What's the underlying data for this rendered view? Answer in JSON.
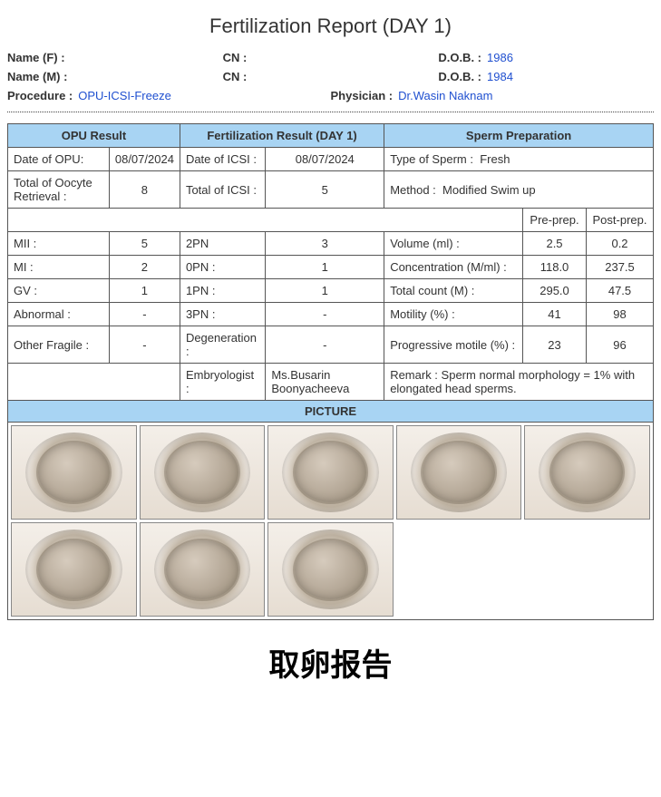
{
  "title": "Fertilization Report (DAY 1)",
  "header": {
    "nameF_label": "Name (F) :",
    "nameF": "",
    "cnF_label": "CN :",
    "cnF": "",
    "dobF_label": "D.O.B. :",
    "dobF": "1986",
    "nameM_label": "Name (M) :",
    "nameM": "",
    "cnM_label": "CN :",
    "cnM": "",
    "dobM_label": "D.O.B. :",
    "dobM": "1984",
    "procedure_label": "Procedure :",
    "procedure": "OPU-ICSI-Freeze",
    "physician_label": "Physician :",
    "physician": "Dr.Wasin Naknam"
  },
  "sections": {
    "opu": "OPU Result",
    "fert": "Fertilization Result (DAY 1)",
    "sperm": "Sperm Preparation",
    "picture": "PICTURE"
  },
  "opu": {
    "date_label": "Date of OPU:",
    "date": "08/07/2024",
    "total_label": "Total of Oocyte Retrieval :",
    "total": "8",
    "mii_label": "MII :",
    "mii": "5",
    "mi_label": "MI :",
    "mi": "2",
    "gv_label": "GV :",
    "gv": "1",
    "abnormal_label": "Abnormal :",
    "abnormal": "-",
    "fragile_label": "Other Fragile :",
    "fragile": "-"
  },
  "fert": {
    "date_label": "Date of ICSI :",
    "date": "08/07/2024",
    "total_label": "Total of ICSI :",
    "total": "5",
    "pn2_label": "2PN",
    "pn2": "3",
    "pn0_label": "0PN :",
    "pn0": "1",
    "pn1_label": "1PN :",
    "pn1": "1",
    "pn3_label": "3PN :",
    "pn3": "-",
    "degen_label": "Degeneration :",
    "degen": "-",
    "embryo_label": "Embryologist :",
    "embryo": "Ms.Busarin Boonyacheeva"
  },
  "sperm": {
    "type_label": "Type of Sperm :",
    "type": "Fresh",
    "method_label": "Method :",
    "method": "Modified Swim up",
    "pre_label": "Pre-prep.",
    "post_label": "Post-prep.",
    "vol_label": "Volume (ml) :",
    "vol_pre": "2.5",
    "vol_post": "0.2",
    "conc_label": "Concentration (M/ml) :",
    "conc_pre": "118.0",
    "conc_post": "237.5",
    "count_label": "Total count (M) :",
    "count_pre": "295.0",
    "count_post": "47.5",
    "mot_label": "Motility (%) :",
    "mot_pre": "41",
    "mot_post": "98",
    "prog_label": "Progressive motile (%) :",
    "prog_pre": "23",
    "prog_post": "96",
    "remark_label": "Remark :",
    "remark": "Sperm normal morphology = 1% with elongated head sperms."
  },
  "pictures_count": 8,
  "chinese_title": "取卵报告"
}
